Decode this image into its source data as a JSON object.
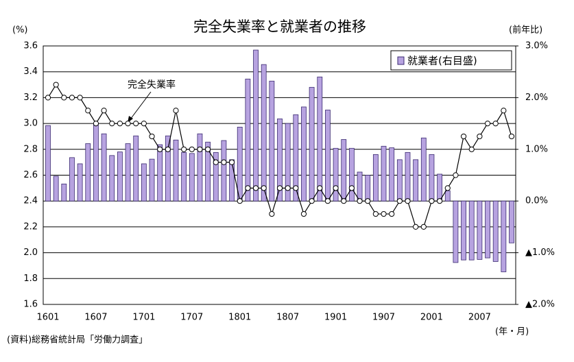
{
  "chart_data": {
    "type": "bar+line",
    "title": "完全失業率と就業者の推移",
    "y_label": "(%)",
    "y2_label": "(前年比)",
    "x_label": "(年・月)",
    "source": "(資料)総務省統計局「労働力調査」",
    "categories": [
      "1601",
      null,
      null,
      null,
      null,
      null,
      "1607",
      null,
      null,
      null,
      null,
      null,
      "1701",
      null,
      null,
      null,
      null,
      null,
      "1707",
      null,
      null,
      null,
      null,
      null,
      "1801",
      null,
      null,
      null,
      null,
      null,
      "1807",
      null,
      null,
      null,
      null,
      null,
      "1901",
      null,
      null,
      null,
      null,
      null,
      "1907",
      null,
      null,
      null,
      null,
      null,
      "2001",
      null,
      null,
      null,
      null,
      null,
      "2007",
      null,
      null,
      null,
      null
    ],
    "series": [
      {
        "name": "就業者(右目盛)",
        "type": "bar",
        "axis": "y2",
        "color": "#b7a3e0",
        "values": [
          1.46,
          0.48,
          0.33,
          0.84,
          0.72,
          1.11,
          1.5,
          1.3,
          0.88,
          0.95,
          1.11,
          1.26,
          0.72,
          0.81,
          1.09,
          1.26,
          1.18,
          0.94,
          0.92,
          1.3,
          1.14,
          0.94,
          1.17,
          0.8,
          1.43,
          2.36,
          2.92,
          2.64,
          2.32,
          1.59,
          1.5,
          1.67,
          1.82,
          2.2,
          2.4,
          1.76,
          1.02,
          1.19,
          1.02,
          0.56,
          0.5,
          0.9,
          1.06,
          1.03,
          0.8,
          0.94,
          0.8,
          1.22,
          0.9,
          0.52,
          0.2,
          -1.19,
          -1.14,
          -1.14,
          -1.13,
          -1.1,
          -1.17,
          -1.37,
          -0.81
        ]
      },
      {
        "name": "完全失業率",
        "type": "line",
        "axis": "y",
        "color": "#000000",
        "values": [
          3.2,
          3.3,
          3.2,
          3.2,
          3.2,
          3.1,
          3.0,
          3.1,
          3.0,
          3.0,
          3.0,
          3.0,
          3.0,
          2.9,
          2.8,
          2.8,
          3.1,
          2.8,
          2.8,
          2.8,
          2.8,
          2.7,
          2.7,
          2.7,
          2.4,
          2.5,
          2.5,
          2.5,
          2.3,
          2.5,
          2.5,
          2.5,
          2.3,
          2.4,
          2.5,
          2.4,
          2.5,
          2.4,
          2.5,
          2.4,
          2.4,
          2.3,
          2.3,
          2.3,
          2.4,
          2.4,
          2.2,
          2.2,
          2.4,
          2.4,
          2.5,
          2.6,
          2.9,
          2.8,
          2.9,
          3.0,
          3.0,
          3.1,
          2.9
        ]
      }
    ],
    "ylim": [
      1.6,
      3.6
    ],
    "yticks": [
      1.6,
      1.8,
      {
        "value": 2.0,
        "label": "2.0"
      },
      2.2,
      2.4,
      2.6,
      2.8,
      {
        "value": 3.0,
        "label": "3.0"
      },
      3.2,
      3.4,
      3.6
    ],
    "y2lim": [
      -2,
      3
    ],
    "y2ticks": [
      {
        "value": 3,
        "label": "3.0%"
      },
      {
        "value": 2,
        "label": "2.0%"
      },
      {
        "value": 1,
        "label": "1.0%"
      },
      {
        "value": 0,
        "label": "0.0%"
      },
      {
        "value": -1,
        "label": "▲1.0%"
      },
      {
        "value": -2,
        "label": "▲2.0%"
      }
    ],
    "grid": true,
    "legend": "top-right"
  }
}
